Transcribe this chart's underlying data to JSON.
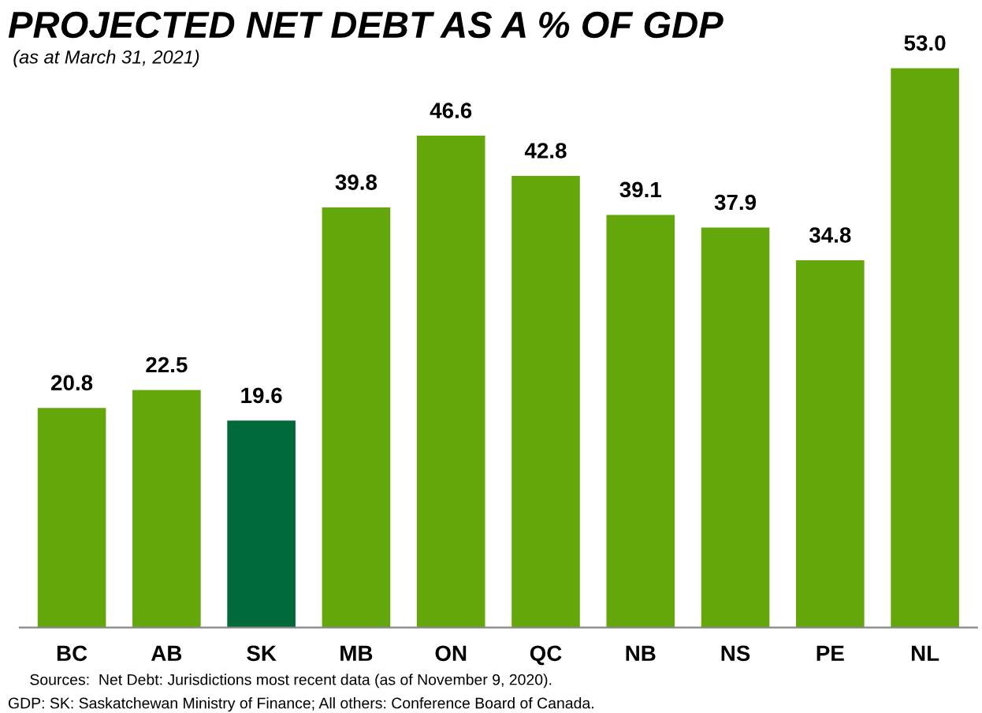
{
  "chart_data": {
    "type": "bar",
    "title": "PROJECTED NET DEBT AS A % OF GDP",
    "subtitle": "(as at March 31, 2021)",
    "categories": [
      "BC",
      "AB",
      "SK",
      "MB",
      "ON",
      "QC",
      "NB",
      "NS",
      "PE",
      "NL"
    ],
    "values": [
      20.8,
      22.5,
      19.6,
      39.8,
      46.6,
      42.8,
      39.1,
      37.9,
      34.8,
      53.0
    ],
    "value_labels": [
      "20.8",
      "22.5",
      "19.6",
      "39.8",
      "46.6",
      "42.8",
      "39.1",
      "37.9",
      "34.8",
      "53.0"
    ],
    "colors": [
      "#64a70b",
      "#64a70b",
      "#006a3a",
      "#64a70b",
      "#64a70b",
      "#64a70b",
      "#64a70b",
      "#64a70b",
      "#64a70b",
      "#64a70b"
    ],
    "annotations": [
      "Sources:  Net Debt: Jurisdictions most recent data (as of November 9, 2020).",
      "GDP: SK: Saskatchewan Ministry of Finance; All others: Conference Board of Canada."
    ],
    "grid": false,
    "legend": false
  }
}
